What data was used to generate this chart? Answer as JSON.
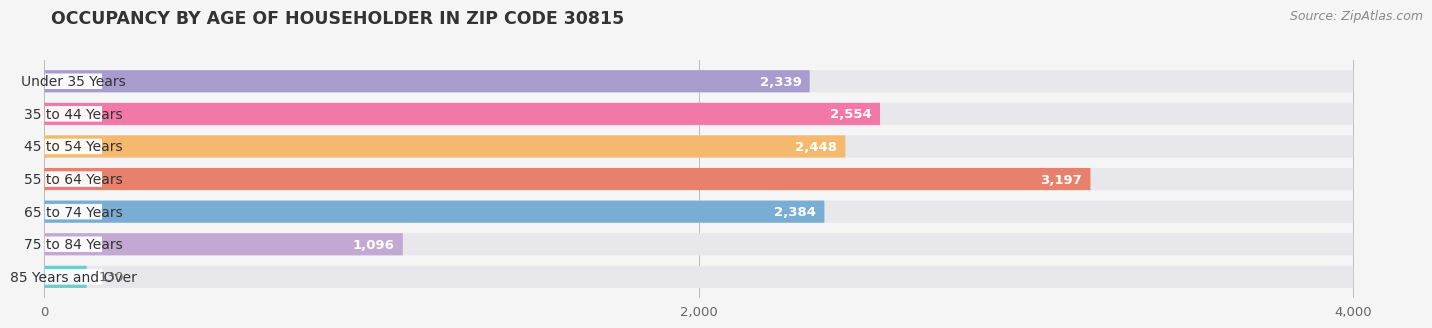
{
  "title": "OCCUPANCY BY AGE OF HOUSEHOLDER IN ZIP CODE 30815",
  "source": "Source: ZipAtlas.com",
  "categories": [
    "Under 35 Years",
    "35 to 44 Years",
    "45 to 54 Years",
    "55 to 64 Years",
    "65 to 74 Years",
    "75 to 84 Years",
    "85 Years and Over"
  ],
  "values": [
    2339,
    2554,
    2448,
    3197,
    2384,
    1096,
    130
  ],
  "bar_colors": [
    "#a89cce",
    "#f278a8",
    "#f5b96e",
    "#e8806e",
    "#7aadd4",
    "#c4a8d4",
    "#6fcbcc"
  ],
  "bar_bg_color": "#e8e8ec",
  "label_bg_color": "#ffffff",
  "value_inside_color": "#ffffff",
  "value_outside_color": "#666666",
  "xlim_max": 4200,
  "bg_bar_max": 4000,
  "xticks": [
    0,
    2000,
    4000
  ],
  "title_fontsize": 12.5,
  "source_fontsize": 9,
  "label_fontsize": 10,
  "value_fontsize": 9.5,
  "background_color": "#f5f5f5",
  "grid_color": "#bbbbbb",
  "bar_height": 0.68,
  "bar_gap": 1.0,
  "inside_threshold": 400
}
